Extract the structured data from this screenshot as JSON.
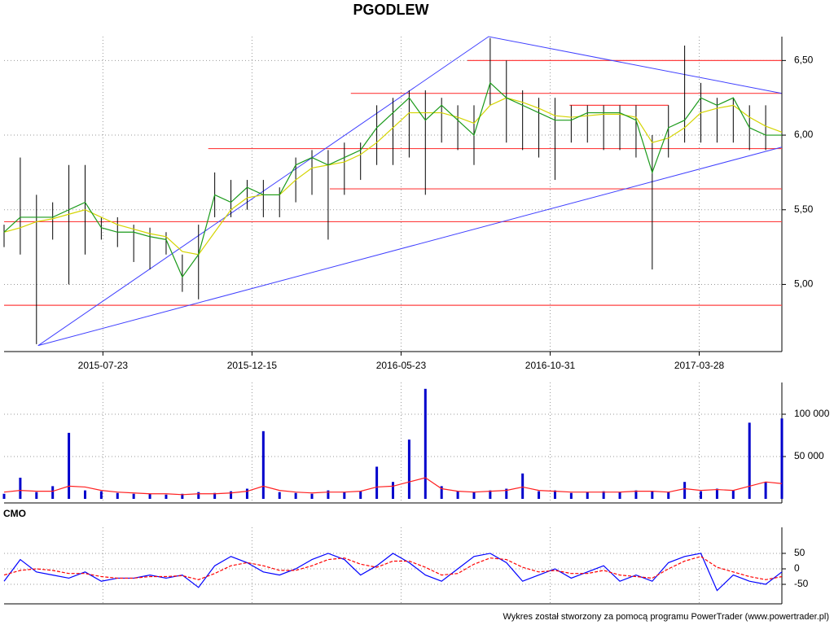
{
  "title": "PGODLEW",
  "footer": "Wykres został stworzony za pomocą programu PowerTrader (www.powertrader.pl)",
  "chart_data": [
    {
      "type": "stock",
      "x": [
        0,
        1,
        2,
        3,
        4,
        5,
        6,
        7,
        8,
        9,
        10,
        11,
        12,
        13,
        14,
        15,
        16,
        17,
        18,
        19,
        20,
        21,
        22,
        23,
        24,
        25,
        26,
        27,
        28,
        29,
        30,
        31,
        32,
        33,
        34,
        35,
        36,
        37,
        38,
        39,
        40,
        41,
        42,
        43,
        44,
        45,
        46,
        47,
        48
      ],
      "high": [
        5.4,
        5.85,
        5.6,
        5.55,
        5.8,
        5.8,
        5.45,
        5.45,
        5.4,
        5.38,
        5.35,
        5.2,
        5.4,
        5.75,
        5.7,
        5.7,
        5.7,
        5.65,
        5.85,
        5.9,
        5.9,
        5.95,
        5.95,
        6.2,
        6.25,
        6.3,
        6.3,
        6.25,
        6.2,
        6.2,
        6.65,
        6.5,
        6.3,
        6.25,
        6.25,
        6.2,
        6.2,
        6.2,
        6.2,
        6.2,
        6.0,
        6.2,
        6.6,
        6.35,
        6.25,
        6.25,
        6.2,
        6.2,
        6.5
      ],
      "low": [
        5.25,
        5.2,
        4.6,
        5.3,
        5.0,
        5.2,
        5.3,
        5.25,
        5.15,
        5.1,
        5.2,
        4.95,
        4.9,
        5.45,
        5.45,
        5.5,
        5.45,
        5.45,
        5.55,
        5.6,
        5.3,
        5.6,
        5.7,
        5.8,
        5.8,
        5.85,
        5.6,
        5.95,
        5.9,
        5.8,
        6.2,
        5.95,
        5.9,
        5.85,
        5.7,
        5.95,
        5.95,
        5.9,
        5.9,
        5.85,
        5.1,
        5.85,
        5.95,
        5.95,
        5.95,
        5.95,
        5.9,
        5.9,
        5.95
      ],
      "close": [
        5.35,
        5.45,
        5.45,
        5.45,
        5.5,
        5.55,
        5.38,
        5.35,
        5.35,
        5.32,
        5.3,
        5.05,
        5.2,
        5.6,
        5.55,
        5.65,
        5.6,
        5.6,
        5.8,
        5.85,
        5.8,
        5.85,
        5.9,
        6.05,
        6.15,
        6.25,
        6.1,
        6.2,
        6.1,
        6.0,
        6.35,
        6.25,
        6.2,
        6.15,
        6.1,
        6.1,
        6.15,
        6.15,
        6.15,
        6.1,
        5.75,
        6.05,
        6.1,
        6.25,
        6.2,
        6.25,
        6.05,
        6.0,
        6.0
      ],
      "bar_color": "#000000",
      "close_color": "#1a9a1a",
      "ma": {
        "color": "#d4d400",
        "values": [
          5.35,
          5.38,
          5.42,
          5.44,
          5.47,
          5.5,
          5.45,
          5.4,
          5.37,
          5.34,
          5.32,
          5.22,
          5.2,
          5.35,
          5.5,
          5.58,
          5.6,
          5.6,
          5.7,
          5.78,
          5.8,
          5.82,
          5.87,
          5.95,
          6.05,
          6.15,
          6.15,
          6.15,
          6.12,
          6.08,
          6.2,
          6.25,
          6.22,
          6.18,
          6.13,
          6.12,
          6.13,
          6.14,
          6.14,
          6.12,
          5.95,
          5.98,
          6.05,
          6.15,
          6.18,
          6.2,
          6.12,
          6.06,
          6.02
        ]
      },
      "levels_color": "#ff4040",
      "levels": [
        {
          "value": 4.86,
          "start": 0,
          "end": 48
        },
        {
          "value": 5.42,
          "start": 0,
          "end": 48
        },
        {
          "value": 5.64,
          "start": 20.1,
          "end": 48
        },
        {
          "value": 5.91,
          "start": 12.6,
          "end": 48
        },
        {
          "value": 6.28,
          "start": 21.4,
          "end": 48
        },
        {
          "value": 6.5,
          "start": 28.6,
          "end": 48
        },
        {
          "value": 6.2,
          "start": 34.9,
          "end": 41
        }
      ],
      "trend_color": "#4040ff",
      "trendlines": [
        {
          "x": [
            2.1,
            29.9,
            48
          ],
          "y": [
            4.59,
            6.66,
            6.28
          ]
        },
        {
          "x": [
            2.1,
            48
          ],
          "y": [
            4.59,
            5.92
          ]
        }
      ],
      "xlim": [
        0,
        48
      ],
      "xticks": [
        {
          "value": 6.1,
          "label": "2015-07-23"
        },
        {
          "value": 15.3,
          "label": "2015-12-15"
        },
        {
          "value": 24.5,
          "label": "2016-05-23"
        },
        {
          "value": 33.7,
          "label": "2016-10-31"
        },
        {
          "value": 42.9,
          "label": "2017-03-28"
        }
      ],
      "ylim": [
        4.55,
        6.66
      ],
      "yticks": [
        {
          "value": 5,
          "label": "5,00"
        },
        {
          "value": 5.5,
          "label": "5,50"
        },
        {
          "value": 6,
          "label": "6,00"
        },
        {
          "value": 6.5,
          "label": "6,50"
        }
      ],
      "grid": true
    },
    {
      "type": "bar",
      "values": [
        6000,
        25000,
        8000,
        15000,
        78000,
        10000,
        9000,
        7000,
        6000,
        6000,
        5000,
        6000,
        8000,
        7000,
        9000,
        12000,
        80000,
        8000,
        7000,
        6000,
        10000,
        8000,
        9000,
        38000,
        20000,
        70000,
        130000,
        15000,
        9000,
        8000,
        10000,
        12000,
        30000,
        9000,
        10000,
        7000,
        8000,
        9000,
        8000,
        10000,
        9000,
        8000,
        20000,
        9000,
        12000,
        10000,
        90000,
        20000,
        95000
      ],
      "color": "#0000cc",
      "ma": {
        "color": "#ff2020",
        "values": [
          8000,
          10000,
          9000,
          9000,
          15000,
          14000,
          10000,
          8000,
          7000,
          6000,
          6000,
          5000,
          6000,
          6000,
          7000,
          9000,
          15000,
          10000,
          8000,
          7000,
          8000,
          8000,
          9000,
          14000,
          15000,
          20000,
          25000,
          12000,
          9000,
          8000,
          9000,
          10000,
          14000,
          10000,
          9000,
          8000,
          8000,
          8000,
          8000,
          9000,
          9000,
          8000,
          12000,
          10000,
          11000,
          10000,
          15000,
          20000,
          18000
        ]
      },
      "ylim": [
        0,
        137500
      ],
      "yticks": [
        {
          "value": 50000,
          "label": "50 000"
        },
        {
          "value": 100000,
          "label": "100 000"
        }
      ],
      "grid": true
    },
    {
      "type": "line",
      "title": "CMO",
      "series": [
        {
          "color": "#0000ff",
          "values": [
            -40,
            30,
            -10,
            -20,
            -30,
            -10,
            -40,
            -30,
            -30,
            -20,
            -30,
            -20,
            -60,
            10,
            40,
            20,
            -10,
            -20,
            0,
            30,
            50,
            30,
            -20,
            10,
            50,
            20,
            -20,
            -40,
            0,
            40,
            50,
            20,
            -40,
            -20,
            0,
            -30,
            -10,
            10,
            -40,
            -20,
            -40,
            20,
            40,
            50,
            -70,
            -20,
            -40,
            -50,
            -10
          ]
        },
        {
          "color": "#ff0000",
          "values": [
            -20,
            -5,
            0,
            -5,
            -15,
            -15,
            -25,
            -30,
            -30,
            -25,
            -25,
            -22,
            -35,
            -15,
            10,
            20,
            10,
            -5,
            -5,
            10,
            30,
            35,
            15,
            5,
            25,
            25,
            5,
            -20,
            -15,
            15,
            35,
            30,
            5,
            -10,
            -5,
            -15,
            -15,
            -5,
            -20,
            -25,
            -30,
            0,
            25,
            40,
            5,
            -10,
            -25,
            -35,
            -25
          ]
        }
      ],
      "ylim": [
        -113,
        134
      ],
      "yticks": [
        50,
        0,
        -50
      ],
      "grid": true
    }
  ]
}
